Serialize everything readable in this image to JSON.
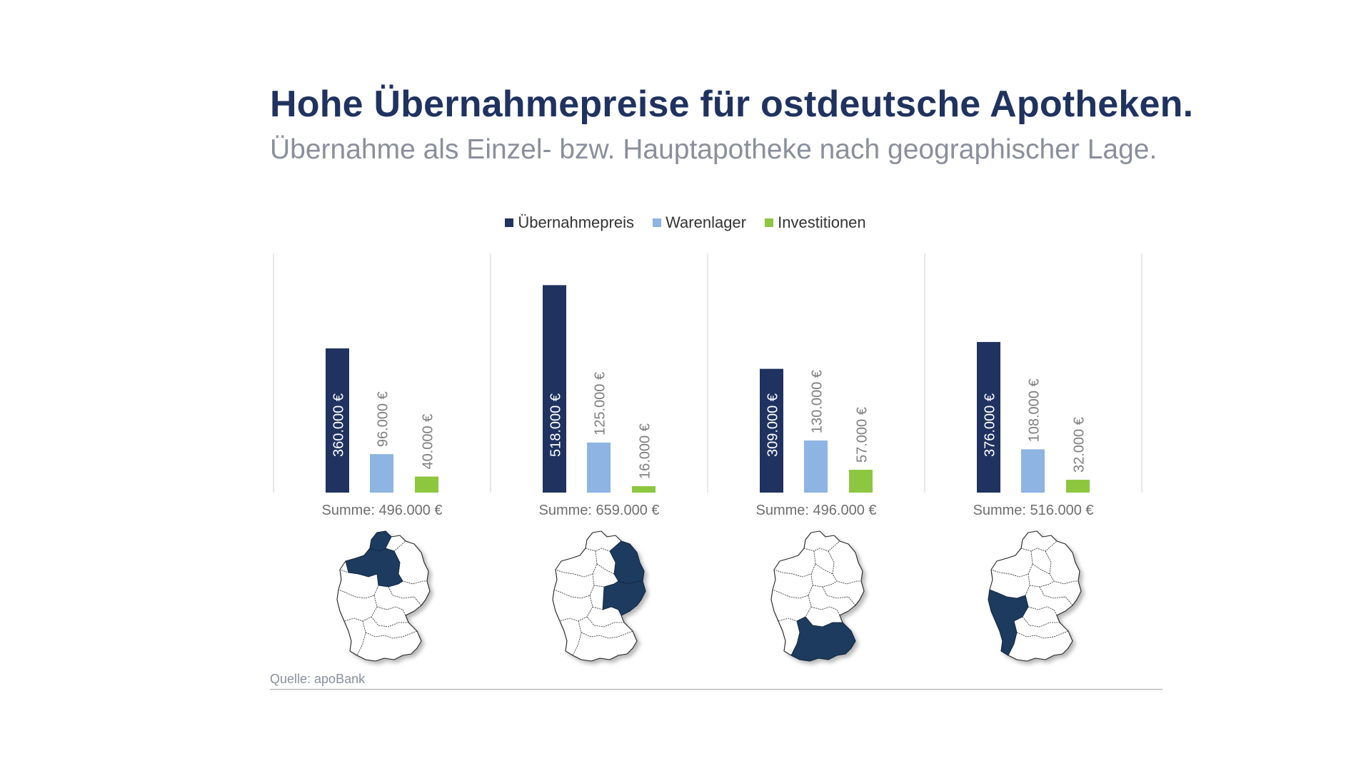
{
  "title": "Hohe Übernahmepreise für ostdeutsche Apotheken.",
  "subtitle": "Übernahme als Einzel- bzw. Hauptapotheke nach geographischer Lage.",
  "source": "Quelle: apoBank",
  "colors": {
    "title": "#1f3260",
    "uebernahmepreis": "#1f3260",
    "warenlager": "#8db4e2",
    "investitionen": "#8dc63f",
    "region": "#1e3a5f"
  },
  "chart_data": {
    "type": "bar",
    "title": "Übernahme als Einzel- bzw. Hauptapotheke nach geographischer Lage.",
    "xlabel": "",
    "ylabel": "",
    "ylim": [
      0,
      600000
    ],
    "legend_position": "top-center",
    "series": [
      {
        "name": "Übernahmepreis",
        "color": "#1f3260"
      },
      {
        "name": "Warenlager",
        "color": "#8db4e2"
      },
      {
        "name": "Investitionen",
        "color": "#8dc63f"
      }
    ],
    "panels": [
      {
        "region": "Nordwest",
        "values": [
          360000,
          96000,
          40000
        ],
        "labels": [
          "360.000 €",
          "96.000 €",
          "40.000 €"
        ],
        "sum_label": "Summe: 496.000 €"
      },
      {
        "region": "Ost",
        "values": [
          518000,
          125000,
          16000
        ],
        "labels": [
          "518.000 €",
          "125.000 €",
          "16.000 €"
        ],
        "sum_label": "Summe: 659.000 €"
      },
      {
        "region": "Süd",
        "values": [
          309000,
          130000,
          57000
        ],
        "labels": [
          "309.000 €",
          "130.000 €",
          "57.000 €"
        ],
        "sum_label": "Summe: 496.000 €"
      },
      {
        "region": "West",
        "values": [
          376000,
          108000,
          32000
        ],
        "labels": [
          "376.000 €",
          "108.000 €",
          "32.000 €"
        ],
        "sum_label": "Summe: 516.000 €"
      }
    ]
  }
}
